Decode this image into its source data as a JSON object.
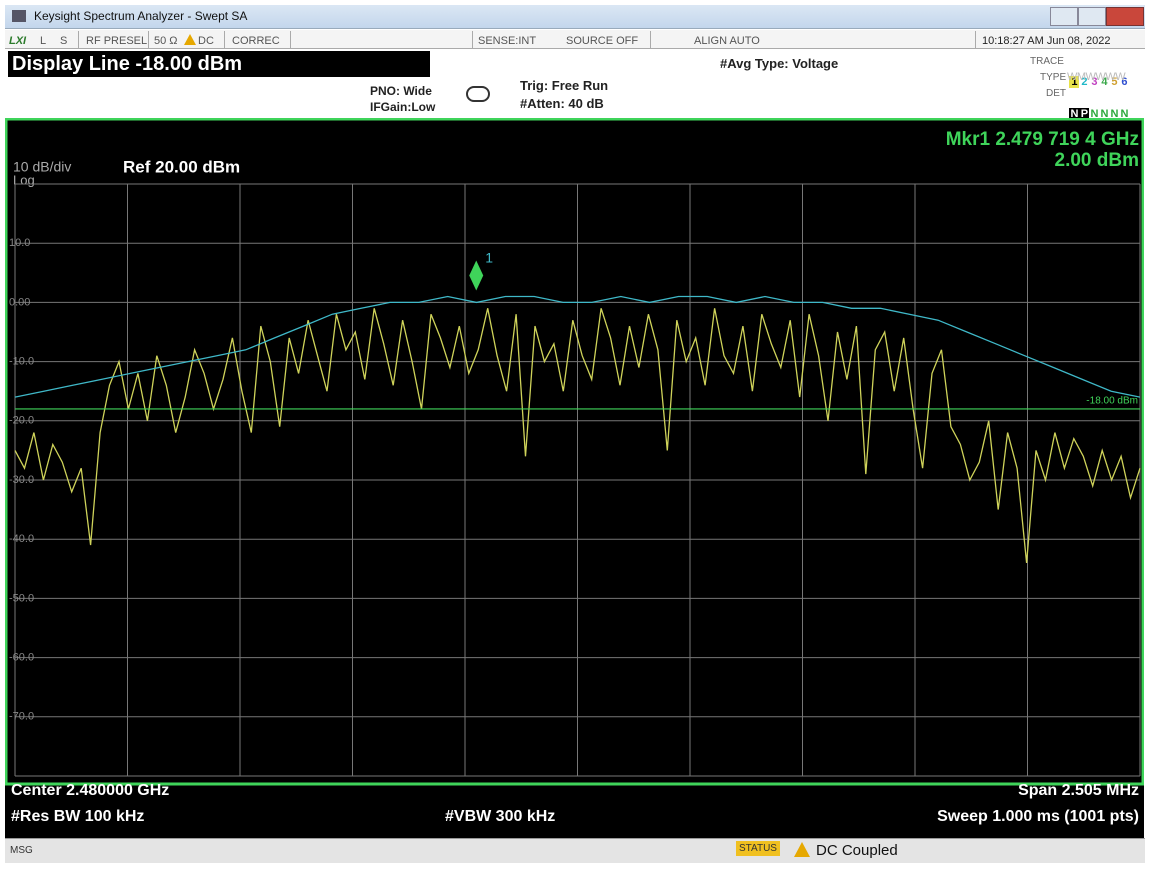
{
  "window": {
    "title": "Keysight Spectrum Analyzer - Swept SA"
  },
  "toolbar": {
    "lxi": "LXI",
    "l": "L",
    "s": "S",
    "rf_presel": "RF PRESEL",
    "impedance": "50 Ω",
    "dc": "DC",
    "correc": "CORREC",
    "sense": "SENSE:INT",
    "source": "SOURCE OFF",
    "align": "ALIGN AUTO",
    "datetime": "10:18:27 AM Jun 08, 2022"
  },
  "header": {
    "display_line": "Display Line -18.00 dBm",
    "pno": "PNO: Wide",
    "ifgain": "IFGain:Low",
    "trig": "Trig: Free Run",
    "atten": "#Atten: 40 dB",
    "avg_type": "#Avg Type: Voltage",
    "trace_label": "TRACE",
    "trace_numbers": [
      "1",
      "2",
      "3",
      "4",
      "5",
      "6"
    ],
    "type_label": "TYPE",
    "type_value": "WMWWWW",
    "det_label": "DET",
    "det_values": [
      "N",
      "P",
      "N",
      "N",
      "N",
      "N"
    ]
  },
  "chart_data": {
    "type": "line",
    "scale_label": "10 dB/div",
    "scale_type": "Log",
    "ref_level": "Ref 20.00 dBm",
    "marker": {
      "name": "1",
      "frequency": "Mkr1 2.479 719 4 GHz",
      "amplitude": "2.00 dBm",
      "value": 2,
      "color": "#3fd45a"
    },
    "display_line": {
      "value": -18,
      "label": "-18.00 dBm",
      "color": "#3fd45a"
    },
    "ylim": [
      -80,
      20
    ],
    "yticks": [
      {
        "value": 10,
        "label": "10.0"
      },
      {
        "value": 0,
        "label": "0.00"
      },
      {
        "value": -10,
        "label": "-10.0"
      },
      {
        "value": -20,
        "label": "-20.0"
      },
      {
        "value": -30,
        "label": "-30.0"
      },
      {
        "value": -40,
        "label": "-40.0"
      },
      {
        "value": -50,
        "label": "-50.0"
      },
      {
        "value": -60,
        "label": "-60.0"
      },
      {
        "value": -70,
        "label": "-70.0"
      }
    ],
    "grid": true,
    "series": [
      {
        "color": "#cfd35a",
        "values": [
          -25,
          -28,
          -22,
          -30,
          -24,
          -27,
          -32,
          -28,
          -41,
          -22,
          -14,
          -10,
          -18,
          -12,
          -20,
          -9,
          -14,
          -22,
          -16,
          -8,
          -12,
          -18,
          -13,
          -6,
          -15,
          -22,
          -4,
          -10,
          -21,
          -6,
          -12,
          -3,
          -9,
          -15,
          -2,
          -8,
          -5,
          -13,
          -1,
          -7,
          -14,
          -3,
          -10,
          -18,
          -2,
          -6,
          -11,
          -4,
          -12,
          -8,
          -1,
          -9,
          -15,
          -2,
          -26,
          -4,
          -10,
          -7,
          -15,
          -3,
          -9,
          -13,
          -1,
          -6,
          -14,
          -4,
          -11,
          -2,
          -8,
          -25,
          -3,
          -10,
          -6,
          -14,
          -1,
          -9,
          -12,
          -4,
          -15,
          -2,
          -7,
          -11,
          -3,
          -16,
          -2,
          -9,
          -20,
          -5,
          -13,
          -4,
          -29,
          -8,
          -5,
          -15,
          -6,
          -18,
          -28,
          -12,
          -8,
          -21,
          -24,
          -30,
          -27,
          -20,
          -35,
          -22,
          -28,
          -44,
          -25,
          -30,
          -22,
          -28,
          -23,
          -26,
          -31,
          -25,
          -30,
          -26,
          -33,
          -28
        ]
      },
      {
        "color": "#3fb8c8",
        "values": [
          -16,
          -15,
          -14,
          -13,
          -12,
          -11,
          -10,
          -9,
          -8,
          -6,
          -4,
          -2,
          -1,
          0,
          0,
          1,
          0,
          1,
          1,
          0,
          0,
          1,
          0,
          1,
          1,
          0,
          1,
          0,
          0,
          -1,
          -1,
          -2,
          -3,
          -5,
          -7,
          -9,
          -11,
          -13,
          -15,
          -16
        ]
      }
    ],
    "center": "Center 2.480000 GHz",
    "span": "Span 2.505 MHz",
    "res_bw": "#Res BW 100 kHz",
    "vbw": "#VBW 300 kHz",
    "sweep": "Sweep  1.000 ms (1001 pts)"
  },
  "status_bar": {
    "msg": "MSG",
    "status": "STATUS",
    "message": "DC Coupled"
  }
}
